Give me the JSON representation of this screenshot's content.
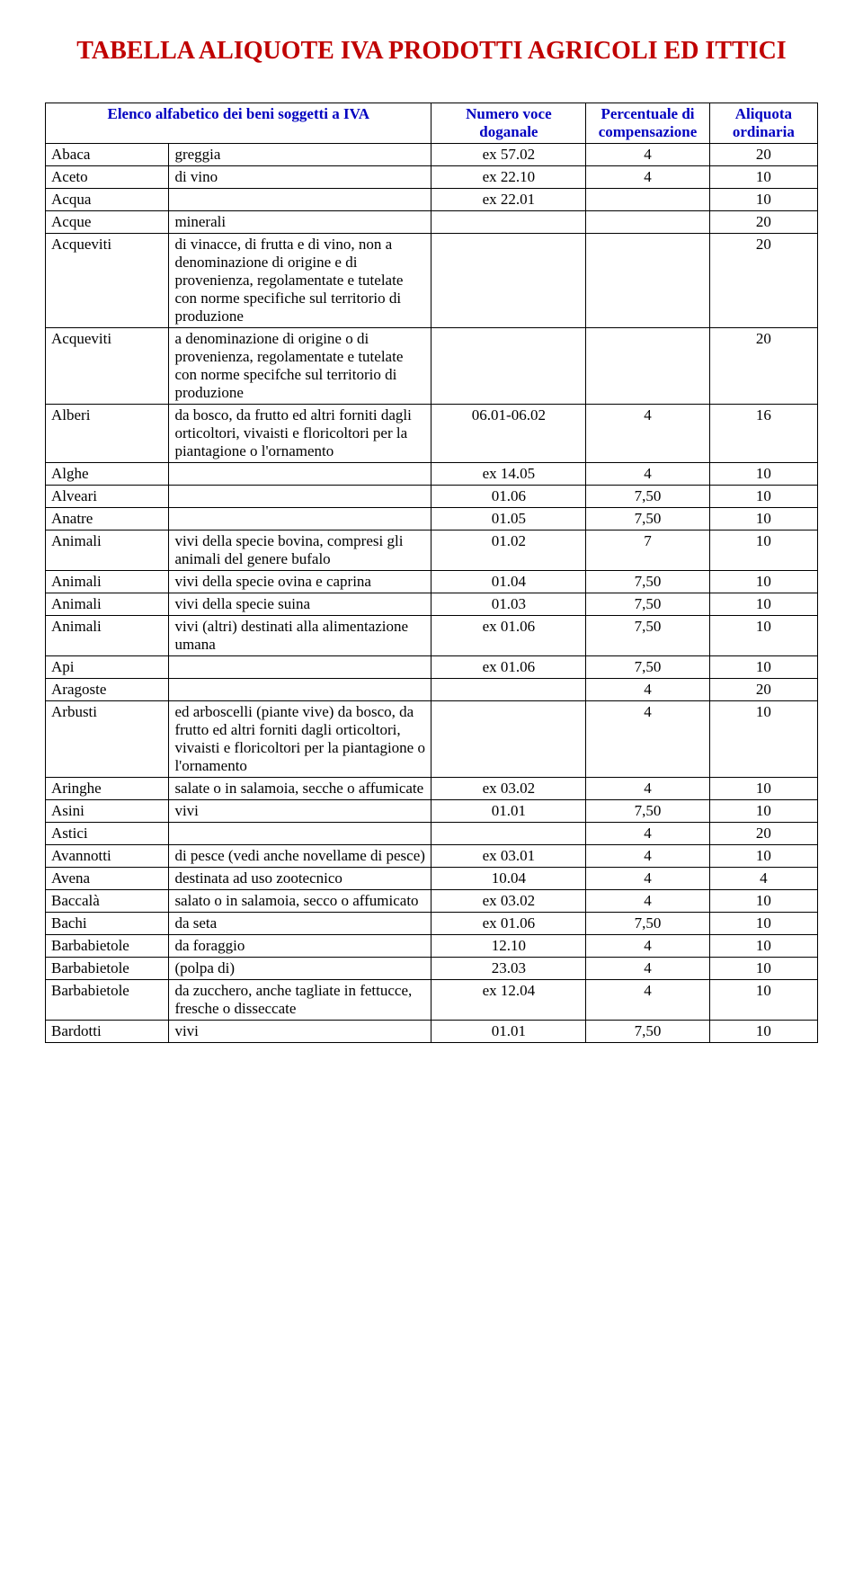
{
  "title": "TABELLA ALIQUOTE IVA PRODOTTI AGRICOLI ED ITTICI",
  "headers": {
    "col1": "Elenco alfabetico dei beni soggetti a IVA",
    "col3": "Numero voce doganale",
    "col4": "Percentuale di compensazione",
    "col5": "Aliquota ordinaria"
  },
  "colors": {
    "title": "#c00000",
    "header_text": "#0000c0",
    "border": "#000000",
    "background": "#ffffff",
    "text": "#000000"
  },
  "rows": [
    {
      "c1": "Abaca",
      "c2": "greggia",
      "c3": "ex 57.02",
      "c4": "4",
      "c5": "20"
    },
    {
      "c1": "Aceto",
      "c2": "di vino",
      "c3": "ex 22.10",
      "c4": "4",
      "c5": "10"
    },
    {
      "c1": "Acqua",
      "c2": "",
      "c3": "ex 22.01",
      "c4": "",
      "c5": "10"
    },
    {
      "c1": "Acque",
      "c2": "minerali",
      "c3": "",
      "c4": "",
      "c5": "20"
    },
    {
      "c1": "Acqueviti",
      "c2": "di vinacce, di frutta e di vino, non a denominazione di origine e di provenienza, regolamentate e tutelate con norme specifiche sul territorio di produzione",
      "c3": "",
      "c4": "",
      "c5": "20"
    },
    {
      "c1": "Acqueviti",
      "c2": "a denominazione di origine o di provenienza, regolamentate e tutelate con norme specifche sul territorio di produzione",
      "c3": "",
      "c4": "",
      "c5": "20"
    },
    {
      "c1": "Alberi",
      "c2": "da bosco, da frutto ed altri forniti dagli orticoltori, vivaisti e floricoltori per la piantagione o l'ornamento",
      "c3": "06.01-06.02",
      "c4": "4",
      "c5": "16"
    },
    {
      "c1": "Alghe",
      "c2": "",
      "c3": "ex 14.05",
      "c4": "4",
      "c5": "10"
    },
    {
      "c1": "Alveari",
      "c2": "",
      "c3": "01.06",
      "c4": "7,50",
      "c5": "10"
    },
    {
      "c1": "Anatre",
      "c2": "",
      "c3": "01.05",
      "c4": "7,50",
      "c5": "10"
    },
    {
      "c1": "Animali",
      "c2": "vivi della specie bovina, compresi gli animali del genere bufalo",
      "c3": "01.02",
      "c4": "7",
      "c5": "10"
    },
    {
      "c1": "Animali",
      "c2": "vivi della specie ovina e caprina",
      "c3": "01.04",
      "c4": "7,50",
      "c5": "10"
    },
    {
      "c1": "Animali",
      "c2": "vivi della specie suina",
      "c3": "01.03",
      "c4": "7,50",
      "c5": "10"
    },
    {
      "c1": "Animali",
      "c2": "vivi (altri) destinati alla alimentazione umana",
      "c3": "ex 01.06",
      "c4": "7,50",
      "c5": "10"
    },
    {
      "c1": "Api",
      "c2": "",
      "c3": "ex 01.06",
      "c4": "7,50",
      "c5": "10"
    },
    {
      "c1": "Aragoste",
      "c2": "",
      "c3": "",
      "c4": "4",
      "c5": "20"
    },
    {
      "c1": "Arbusti",
      "c2": "ed arboscelli (piante vive) da bosco, da frutto ed altri forniti dagli orticoltori, vivaisti e floricoltori per la piantagione o l'ornamento",
      "c3": "",
      "c4": "4",
      "c5": "10"
    },
    {
      "c1": "Aringhe",
      "c2": "salate o in salamoia, secche o affumicate",
      "c3": "ex 03.02",
      "c4": "4",
      "c5": "10"
    },
    {
      "c1": "Asini",
      "c2": "vivi",
      "c3": "01.01",
      "c4": "7,50",
      "c5": "10"
    },
    {
      "c1": "Astici",
      "c2": "",
      "c3": "",
      "c4": "4",
      "c5": "20"
    },
    {
      "c1": "Avannotti",
      "c2": "di pesce (vedi anche novellame di pesce)",
      "c3": "ex 03.01",
      "c4": "4",
      "c5": "10"
    },
    {
      "c1": "Avena",
      "c2": "destinata ad uso zootecnico",
      "c3": "10.04",
      "c4": "4",
      "c5": "4"
    },
    {
      "c1": "Baccalà",
      "c2": "salato o in salamoia, secco o affumicato",
      "c3": "ex 03.02",
      "c4": "4",
      "c5": "10"
    },
    {
      "c1": "Bachi",
      "c2": "da seta",
      "c3": "ex 01.06",
      "c4": "7,50",
      "c5": "10"
    },
    {
      "c1": "Barbabietole",
      "c2": "da foraggio",
      "c3": "12.10",
      "c4": "4",
      "c5": "10"
    },
    {
      "c1": "Barbabietole",
      "c2": "(polpa di)",
      "c3": "23.03",
      "c4": "4",
      "c5": "10"
    },
    {
      "c1": "Barbabietole",
      "c2": "da zucchero, anche tagliate in fettucce, fresche o disseccate",
      "c3": "ex 12.04",
      "c4": "4",
      "c5": "10"
    },
    {
      "c1": "Bardotti",
      "c2": "vivi",
      "c3": "01.01",
      "c4": "7,50",
      "c5": "10"
    }
  ]
}
